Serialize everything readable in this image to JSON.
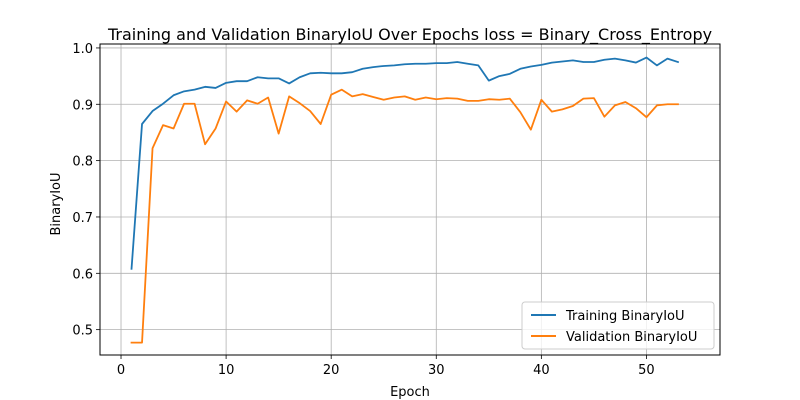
{
  "chart_data": {
    "type": "line",
    "title": "Training and Validation BinaryIoU Over Epochs loss = Binary_Cross_Entropy",
    "xlabel": "Epoch",
    "ylabel": "BinaryIoU",
    "xlim": [
      -2,
      57
    ],
    "ylim": [
      0.455,
      1.007
    ],
    "xticks": [
      0,
      10,
      20,
      30,
      40,
      50
    ],
    "yticks": [
      0.5,
      0.6,
      0.7,
      0.8,
      0.9,
      1.0
    ],
    "ytick_labels": [
      "0.5",
      "0.6",
      "0.7",
      "0.8",
      "0.9",
      "1.0"
    ],
    "grid": true,
    "legend_position": "lower-right",
    "x": [
      1,
      2,
      3,
      4,
      5,
      6,
      7,
      8,
      9,
      10,
      11,
      12,
      13,
      14,
      15,
      16,
      17,
      18,
      19,
      20,
      21,
      22,
      23,
      24,
      25,
      26,
      27,
      28,
      29,
      30,
      31,
      32,
      33,
      34,
      35,
      36,
      37,
      38,
      39,
      40,
      41,
      42,
      43,
      44,
      45,
      46,
      47,
      48,
      49,
      50,
      51,
      52,
      53
    ],
    "series": [
      {
        "name": "Training BinaryIoU",
        "color": "#1f77b4",
        "values": [
          0.608,
          0.865,
          0.888,
          0.901,
          0.916,
          0.923,
          0.926,
          0.931,
          0.929,
          0.938,
          0.941,
          0.941,
          0.948,
          0.946,
          0.946,
          0.937,
          0.948,
          0.955,
          0.956,
          0.955,
          0.955,
          0.957,
          0.963,
          0.966,
          0.968,
          0.969,
          0.971,
          0.972,
          0.972,
          0.973,
          0.973,
          0.975,
          0.972,
          0.969,
          0.942,
          0.95,
          0.954,
          0.963,
          0.967,
          0.97,
          0.974,
          0.976,
          0.978,
          0.975,
          0.975,
          0.979,
          0.981,
          0.978,
          0.974,
          0.983,
          0.969,
          0.981,
          0.975
        ]
      },
      {
        "name": "Validation BinaryIoU",
        "color": "#ff7f0e",
        "values": [
          0.477,
          0.477,
          0.822,
          0.863,
          0.857,
          0.901,
          0.901,
          0.829,
          0.857,
          0.905,
          0.887,
          0.907,
          0.901,
          0.912,
          0.848,
          0.914,
          0.902,
          0.888,
          0.865,
          0.917,
          0.926,
          0.914,
          0.918,
          0.913,
          0.908,
          0.912,
          0.914,
          0.908,
          0.912,
          0.909,
          0.911,
          0.91,
          0.906,
          0.906,
          0.909,
          0.908,
          0.91,
          0.886,
          0.855,
          0.908,
          0.887,
          0.891,
          0.897,
          0.91,
          0.911,
          0.878,
          0.898,
          0.904,
          0.893,
          0.877,
          0.898,
          0.9,
          0.9
        ]
      }
    ]
  }
}
